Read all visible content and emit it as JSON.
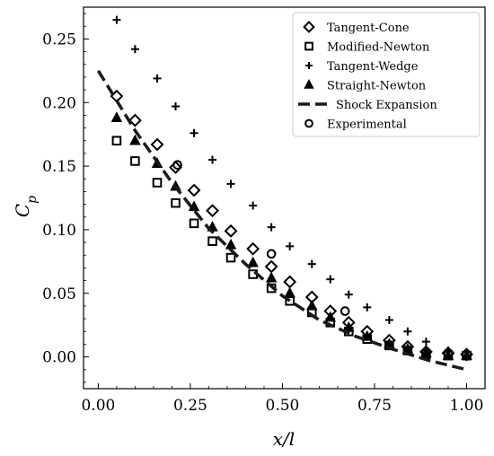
{
  "chart_data": {
    "type": "scatter",
    "xlabel": "x/l",
    "ylabel": "C_p",
    "xlim": [
      -0.04,
      1.05
    ],
    "ylim": [
      -0.025,
      0.275
    ],
    "xticks": [
      0.0,
      0.25,
      0.5,
      0.75,
      1.0
    ],
    "xtick_labels": [
      "0.00",
      "0.25",
      "0.50",
      "0.75",
      "1.00"
    ],
    "yticks": [
      0.0,
      0.05,
      0.1,
      0.15,
      0.2,
      0.25
    ],
    "ytick_labels": [
      "0.00",
      "0.05",
      "0.10",
      "0.15",
      "0.20",
      "0.25"
    ],
    "grid": false,
    "legend_position": "top-right",
    "series": [
      {
        "name": "Tangent-Cone",
        "marker": "diamond",
        "x": [
          0.05,
          0.1,
          0.16,
          0.21,
          0.26,
          0.31,
          0.36,
          0.42,
          0.47,
          0.52,
          0.58,
          0.63,
          0.68,
          0.73,
          0.79,
          0.84,
          0.89,
          0.95,
          1.0
        ],
        "y": [
          0.205,
          0.186,
          0.167,
          0.149,
          0.131,
          0.115,
          0.099,
          0.085,
          0.071,
          0.059,
          0.047,
          0.036,
          0.027,
          0.02,
          0.013,
          0.008,
          0.004,
          0.003,
          0.002
        ]
      },
      {
        "name": "Modified-Newton",
        "marker": "square",
        "x": [
          0.05,
          0.1,
          0.16,
          0.21,
          0.26,
          0.31,
          0.36,
          0.42,
          0.47,
          0.52,
          0.58,
          0.63,
          0.68,
          0.73,
          0.79,
          0.84,
          0.89,
          0.95,
          1.0
        ],
        "y": [
          0.17,
          0.154,
          0.137,
          0.121,
          0.105,
          0.091,
          0.078,
          0.065,
          0.054,
          0.044,
          0.035,
          0.027,
          0.02,
          0.014,
          0.009,
          0.005,
          0.002,
          0.001,
          0.001
        ]
      },
      {
        "name": "Tangent-Wedge",
        "marker": "plus",
        "x": [
          0.05,
          0.1,
          0.16,
          0.21,
          0.26,
          0.31,
          0.36,
          0.42,
          0.47,
          0.52,
          0.58,
          0.63,
          0.68,
          0.73,
          0.79,
          0.84,
          0.89,
          0.95,
          1.0
        ],
        "y": [
          0.265,
          0.242,
          0.219,
          0.197,
          0.176,
          0.155,
          0.136,
          0.119,
          0.102,
          0.087,
          0.073,
          0.061,
          0.049,
          0.039,
          0.029,
          0.02,
          0.012,
          0.005,
          0.0
        ]
      },
      {
        "name": "Straight-Newton",
        "marker": "triangle",
        "x": [
          0.05,
          0.1,
          0.16,
          0.21,
          0.26,
          0.31,
          0.36,
          0.42,
          0.47,
          0.52,
          0.58,
          0.63,
          0.68,
          0.73,
          0.79,
          0.84,
          0.89,
          0.95,
          1.0
        ],
        "y": [
          0.188,
          0.17,
          0.152,
          0.134,
          0.118,
          0.102,
          0.088,
          0.074,
          0.062,
          0.05,
          0.04,
          0.031,
          0.023,
          0.016,
          0.01,
          0.006,
          0.003,
          0.001,
          0.001
        ]
      },
      {
        "name": "Shock Expansion",
        "marker": "dashed-line",
        "x": [
          0.0,
          0.1,
          0.2,
          0.3,
          0.4,
          0.5,
          0.6,
          0.7,
          0.8,
          0.9,
          1.0
        ],
        "y": [
          0.225,
          0.178,
          0.137,
          0.101,
          0.073,
          0.048,
          0.029,
          0.016,
          0.006,
          -0.003,
          -0.01
        ]
      },
      {
        "name": "Experimental",
        "marker": "circle",
        "x": [
          0.215,
          0.47,
          0.67
        ],
        "y": [
          0.151,
          0.081,
          0.036
        ]
      }
    ]
  }
}
